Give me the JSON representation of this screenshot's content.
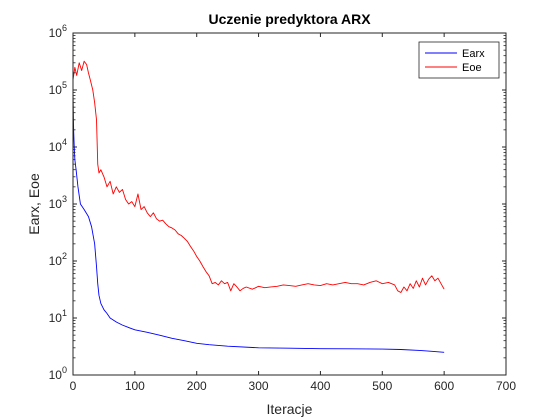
{
  "chart_data": {
    "type": "line",
    "title": "Uczenie predyktora ARX",
    "xlabel": "Iteracje",
    "ylabel": "Earx, Eoe",
    "xlim": [
      0,
      700
    ],
    "ylim": [
      1,
      1000000
    ],
    "yscale": "log",
    "xticks": [
      0,
      100,
      200,
      300,
      400,
      500,
      600,
      700
    ],
    "yticks": [
      {
        "value": 1,
        "mantissa": "10",
        "exp": "0"
      },
      {
        "value": 10,
        "mantissa": "10",
        "exp": "1"
      },
      {
        "value": 100,
        "mantissa": "10",
        "exp": "2"
      },
      {
        "value": 1000,
        "mantissa": "10",
        "exp": "3"
      },
      {
        "value": 10000,
        "mantissa": "10",
        "exp": "4"
      },
      {
        "value": 100000,
        "mantissa": "10",
        "exp": "5"
      },
      {
        "value": 1000000,
        "mantissa": "10",
        "exp": "6"
      }
    ],
    "grid": false,
    "legend": "top-right",
    "series": [
      {
        "name": "Earx",
        "color": "#0000ff",
        "x": [
          0,
          1,
          2,
          3,
          5,
          8,
          12,
          18,
          25,
          30,
          35,
          38,
          40,
          42,
          45,
          50,
          55,
          60,
          70,
          80,
          90,
          100,
          120,
          140,
          160,
          180,
          200,
          220,
          250,
          300,
          350,
          400,
          450,
          500,
          530,
          560,
          580,
          600
        ],
        "y": [
          100000,
          20000,
          10000,
          6000,
          4000,
          2000,
          1000,
          800,
          600,
          400,
          200,
          80,
          40,
          25,
          18,
          14,
          12,
          10,
          8.5,
          7.5,
          6.8,
          6.2,
          5.6,
          5.0,
          4.4,
          4.0,
          3.6,
          3.4,
          3.2,
          3.0,
          2.95,
          2.9,
          2.88,
          2.85,
          2.8,
          2.7,
          2.6,
          2.5
        ]
      },
      {
        "name": "Eoe",
        "color": "#ff0000",
        "x": [
          0,
          3,
          6,
          10,
          14,
          18,
          22,
          25,
          28,
          32,
          35,
          38,
          40,
          42,
          45,
          50,
          55,
          60,
          65,
          70,
          75,
          80,
          85,
          90,
          95,
          100,
          105,
          110,
          115,
          120,
          125,
          130,
          135,
          140,
          145,
          150,
          155,
          160,
          165,
          170,
          175,
          180,
          185,
          190,
          195,
          200,
          205,
          210,
          215,
          220,
          225,
          230,
          235,
          240,
          245,
          250,
          255,
          260,
          265,
          270,
          275,
          280,
          290,
          300,
          310,
          320,
          330,
          340,
          350,
          360,
          370,
          380,
          390,
          400,
          410,
          420,
          430,
          440,
          450,
          460,
          470,
          480,
          490,
          500,
          510,
          520,
          525,
          530,
          535,
          540,
          545,
          550,
          555,
          560,
          565,
          570,
          575,
          580,
          585,
          590,
          595,
          600
        ],
        "y": [
          150000,
          250000,
          180000,
          300000,
          220000,
          320000,
          280000,
          200000,
          150000,
          100000,
          60000,
          30000,
          5000,
          3500,
          4000,
          3000,
          2000,
          2500,
          1500,
          2000,
          1600,
          1800,
          1200,
          1000,
          1100,
          900,
          1500,
          800,
          900,
          700,
          600,
          700,
          550,
          500,
          520,
          450,
          400,
          380,
          350,
          300,
          280,
          250,
          220,
          180,
          150,
          120,
          100,
          80,
          65,
          55,
          40,
          42,
          38,
          45,
          40,
          42,
          30,
          40,
          35,
          30,
          33,
          35,
          32,
          36,
          34,
          35,
          36,
          38,
          37,
          36,
          38,
          40,
          38,
          37,
          40,
          38,
          40,
          42,
          40,
          40,
          38,
          42,
          45,
          40,
          42,
          38,
          30,
          28,
          35,
          30,
          40,
          33,
          45,
          35,
          50,
          38,
          48,
          55,
          45,
          50,
          40,
          32
        ]
      }
    ]
  }
}
